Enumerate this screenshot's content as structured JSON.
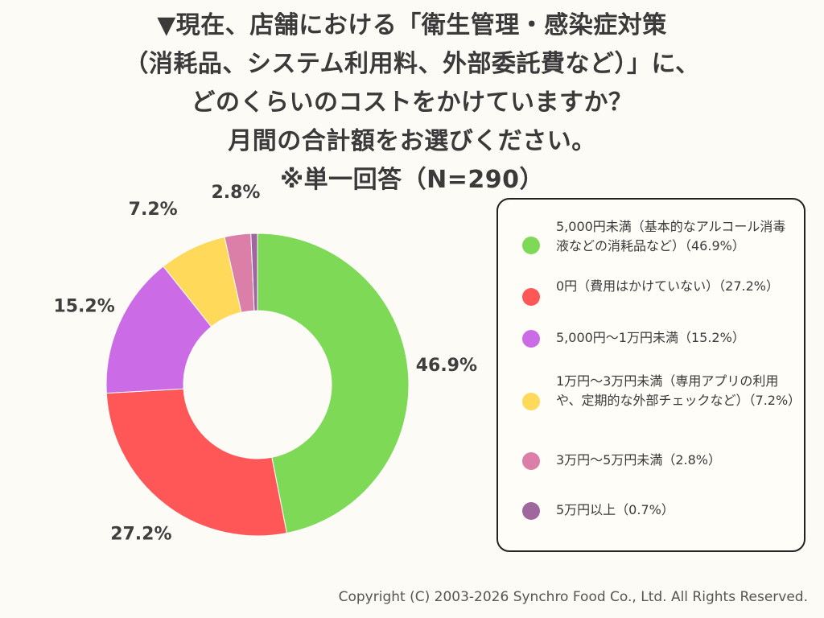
{
  "title_lines": [
    "▼現在、店舗における「衛生管理・感染症対策",
    "（消耗品、システム利用料、外部委託費など）」に、",
    "どのくらいのコストをかけていますか？",
    "月間の合計額をお選びください。",
    "※単一回答（N=290）"
  ],
  "chart_data": {
    "type": "pie",
    "donut": true,
    "title": "▼現在、店舗における「衛生管理・感染症対策（消耗品、システム利用料、外部委託費など）」に、どのくらいのコストをかけていますか？月間の合計額をお選びください。※単一回答（N=290）",
    "categories": [
      "5,000円未満（基本的なアルコール消毒液などの消耗品など）",
      "0円（費用はかけていない）",
      "5,000円〜1万円未満",
      "1万円〜3万円未満（専用アプリの利用や、定期的な外部チェックなど）",
      "3万円〜5万円未満",
      "5万円以上"
    ],
    "values": [
      46.9,
      27.2,
      15.2,
      7.2,
      2.8,
      0.7
    ],
    "value_labels": [
      "46.9%",
      "27.2%",
      "15.2%",
      "7.2%",
      "2.8%",
      ""
    ],
    "colors": [
      "#7ed957",
      "#ff5757",
      "#cb6ce6",
      "#ffd95a",
      "#db7fa8",
      "#a0669e"
    ],
    "legend_position": "right"
  },
  "legend_items": [
    {
      "text": "5,000円未満（基本的なアルコール消毒液などの消耗品など）（46.9%）",
      "color": "#7ed957"
    },
    {
      "text": "0円（費用はかけていない）（27.2%）",
      "color": "#ff5757"
    },
    {
      "text": "5,000円〜1万円未満（15.2%）",
      "color": "#cb6ce6"
    },
    {
      "text": "1万円〜3万円未満（専用アプリの利用や、定期的な外部チェックなど）（7.2%）",
      "color": "#ffd95a"
    },
    {
      "text": "3万円〜5万円未満（2.8%）",
      "color": "#db7fa8"
    },
    {
      "text": "5万円以上（0.7%）",
      "color": "#a0669e"
    }
  ],
  "copyright": "Copyright (C) 2003-2026  Synchro Food Co., Ltd. All Rights Reserved."
}
